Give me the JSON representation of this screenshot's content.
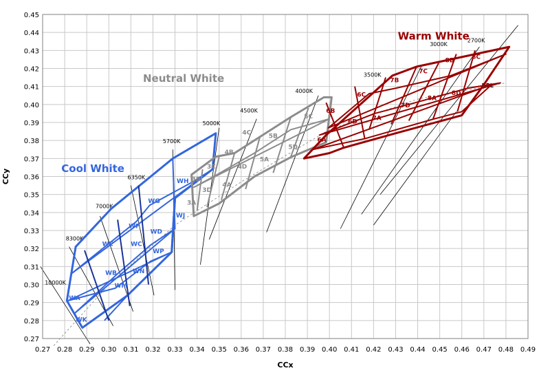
{
  "chart_data": {
    "type": "scatter",
    "xlabel": "CCx",
    "ylabel": "CCy",
    "xlim": [
      0.27,
      0.49
    ],
    "ylim": [
      0.27,
      0.45
    ],
    "x_ticks": [
      0.27,
      0.28,
      0.29,
      0.3,
      0.31,
      0.32,
      0.33,
      0.34,
      0.35,
      0.36,
      0.37,
      0.38,
      0.39,
      0.4,
      0.41,
      0.42,
      0.43,
      0.44,
      0.45,
      0.46,
      0.47,
      0.48,
      0.49
    ],
    "y_ticks": [
      0.27,
      0.28,
      0.29,
      0.3,
      0.31,
      0.32,
      0.33,
      0.34,
      0.35,
      0.36,
      0.37,
      0.38,
      0.39,
      0.4,
      0.41,
      0.42,
      0.43,
      0.44,
      0.45
    ],
    "tick_decimals": 2,
    "grid": true,
    "colors": {
      "cool": "#3366dd",
      "cool_dark": "#1a3399",
      "neutral": "#8c8c8c",
      "warm": "#990000",
      "line": "#000000",
      "grid": "#c8c8c8"
    },
    "bbl": {
      "label": "BBL",
      "points": [
        [
          0.275,
          0.266
        ],
        [
          0.3,
          0.3
        ],
        [
          0.33,
          0.333
        ],
        [
          0.36,
          0.357
        ],
        [
          0.4,
          0.386
        ],
        [
          0.44,
          0.403
        ],
        [
          0.48,
          0.412
        ]
      ],
      "label_pos": [
        0.469,
        0.411
      ]
    },
    "group_labels": [
      {
        "text": "Cool White",
        "x": 0.2785,
        "y": 0.3625,
        "color": "#3366dd"
      },
      {
        "text": "Neutral White",
        "x": 0.3155,
        "y": 0.4125,
        "color": "#8c8c8c"
      },
      {
        "text": "Warm White",
        "x": 0.431,
        "y": 0.436,
        "color": "#990000"
      }
    ],
    "cct_lines": [
      {
        "label": "10000K",
        "p1": [
          0.269,
          0.31
        ],
        "p2": [
          0.2915,
          0.267
        ],
        "label_pos": [
          0.271,
          0.3
        ],
        "anchor": "start"
      },
      {
        "label": "8300K",
        "p1": [
          0.282,
          0.321
        ],
        "p2": [
          0.302,
          0.277
        ],
        "label_pos": [
          0.2805,
          0.3245
        ],
        "anchor": "start"
      },
      {
        "label": "7000K",
        "p1": [
          0.296,
          0.338
        ],
        "p2": [
          0.311,
          0.285
        ],
        "label_pos": [
          0.294,
          0.3425
        ],
        "anchor": "start"
      },
      {
        "label": "6350K",
        "p1": [
          0.31,
          0.355
        ],
        "p2": [
          0.3205,
          0.294
        ],
        "label_pos": [
          0.3085,
          0.3585
        ],
        "anchor": "start"
      },
      {
        "label": "5700K",
        "p1": [
          0.329,
          0.375
        ],
        "p2": [
          0.33,
          0.297
        ],
        "label_pos": [
          0.3245,
          0.3785
        ],
        "anchor": "start"
      },
      {
        "label": "5000K",
        "p1": [
          0.35,
          0.387
        ],
        "p2": [
          0.3415,
          0.311
        ],
        "label_pos": [
          0.3425,
          0.3885
        ],
        "anchor": "start"
      },
      {
        "label": "4500K",
        "p1": [
          0.367,
          0.392
        ],
        "p2": [
          0.3455,
          0.325
        ],
        "label_pos": [
          0.3595,
          0.3955
        ],
        "anchor": "start"
      },
      {
        "label": "4000K",
        "p1": [
          0.395,
          0.405
        ],
        "p2": [
          0.3715,
          0.329
        ],
        "label_pos": [
          0.3845,
          0.4065
        ],
        "anchor": "start"
      },
      {
        "label": "3500K",
        "p1": [
          0.442,
          0.422
        ],
        "p2": [
          0.405,
          0.331
        ],
        "label_pos": [
          0.4155,
          0.4155
        ],
        "anchor": "start"
      },
      {
        "label": "3000K",
        "p1": [
          0.468,
          0.432
        ],
        "p2": [
          0.4145,
          0.339
        ],
        "label_pos": [
          0.4455,
          0.4325
        ],
        "anchor": "start"
      },
      {
        "label": "2700K",
        "p1": [
          0.4855,
          0.444
        ],
        "p2": [
          0.423,
          0.35
        ],
        "label_pos": [
          0.4625,
          0.4345
        ],
        "anchor": "start"
      },
      {
        "label": "",
        "p1": [
          0.4575,
          0.396
        ],
        "p2": [
          0.42,
          0.333
        ],
        "label_pos": [
          0,
          0
        ],
        "anchor": "start"
      }
    ],
    "polygons": [
      {
        "color": "#3366dd",
        "width": 3,
        "points": [
          [
            0.281,
            0.291
          ],
          [
            0.285,
            0.321
          ],
          [
            0.301,
            0.342
          ],
          [
            0.329,
            0.37
          ],
          [
            0.3485,
            0.384
          ],
          [
            0.347,
            0.364
          ],
          [
            0.33,
            0.348
          ],
          [
            0.3285,
            0.318
          ],
          [
            0.3085,
            0.294
          ],
          [
            0.288,
            0.276
          ]
        ]
      },
      {
        "color": "#3366dd",
        "width": 3,
        "points": [
          [
            0.33,
            0.348
          ],
          [
            0.3285,
            0.318
          ]
        ]
      },
      {
        "color": "#3366dd",
        "width": 2,
        "points": [
          [
            0.283,
            0.306
          ],
          [
            0.3125,
            0.335
          ],
          [
            0.3185,
            0.344
          ],
          [
            0.338,
            0.357
          ],
          [
            0.347,
            0.364
          ]
        ]
      },
      {
        "color": "#3366dd",
        "width": 2,
        "points": [
          [
            0.2845,
            0.284
          ],
          [
            0.304,
            0.306
          ],
          [
            0.319,
            0.322
          ],
          [
            0.33,
            0.331
          ]
        ]
      },
      {
        "color": "#3366dd",
        "width": 2,
        "points": [
          [
            0.2815,
            0.291
          ],
          [
            0.303,
            0.298
          ],
          [
            0.319,
            0.313
          ],
          [
            0.3285,
            0.318
          ]
        ]
      },
      {
        "color": "#3366dd",
        "width": 2,
        "points": [
          [
            0.298,
            0.28
          ],
          [
            0.3085,
            0.294
          ]
        ]
      },
      {
        "color": "#1a3399",
        "width": 2,
        "points": [
          [
            0.289,
            0.319
          ],
          [
            0.3,
            0.28
          ]
        ]
      },
      {
        "color": "#1a3399",
        "width": 2,
        "points": [
          [
            0.304,
            0.336
          ],
          [
            0.3095,
            0.288
          ]
        ]
      },
      {
        "color": "#1a3399",
        "width": 2,
        "points": [
          [
            0.3135,
            0.355
          ],
          [
            0.318,
            0.3
          ]
        ]
      },
      {
        "color": "#3366dd",
        "width": 2,
        "points": [
          [
            0.329,
            0.37
          ],
          [
            0.33,
            0.331
          ]
        ]
      },
      {
        "color": "#8c8c8c",
        "width": 3,
        "points": [
          [
            0.3375,
            0.361
          ],
          [
            0.3485,
            0.371
          ],
          [
            0.357,
            0.373
          ],
          [
            0.3825,
            0.393
          ],
          [
            0.3975,
            0.404
          ],
          [
            0.401,
            0.404
          ],
          [
            0.3985,
            0.379
          ],
          [
            0.383,
            0.371
          ],
          [
            0.366,
            0.36
          ],
          [
            0.35,
            0.345
          ],
          [
            0.3385,
            0.338
          ]
        ]
      },
      {
        "color": "#8c8c8c",
        "width": 2,
        "points": [
          [
            0.3375,
            0.361
          ],
          [
            0.3385,
            0.338
          ]
        ]
      },
      {
        "color": "#8c8c8c",
        "width": 2,
        "points": [
          [
            0.3425,
            0.364
          ],
          [
            0.34,
            0.341
          ]
        ]
      },
      {
        "color": "#8c8c8c",
        "width": 2,
        "points": [
          [
            0.35,
            0.371
          ],
          [
            0.3445,
            0.343
          ]
        ]
      },
      {
        "color": "#8c8c8c",
        "width": 2,
        "points": [
          [
            0.357,
            0.373
          ],
          [
            0.351,
            0.347
          ]
        ]
      },
      {
        "color": "#8c8c8c",
        "width": 2,
        "points": [
          [
            0.3685,
            0.382
          ],
          [
            0.362,
            0.353
          ]
        ]
      },
      {
        "color": "#8c8c8c",
        "width": 2,
        "points": [
          [
            0.3825,
            0.393
          ],
          [
            0.3745,
            0.362
          ]
        ]
      },
      {
        "color": "#8c8c8c",
        "width": 2,
        "points": [
          [
            0.3905,
            0.398
          ],
          [
            0.3825,
            0.371
          ]
        ]
      },
      {
        "color": "#8c8c8c",
        "width": 2,
        "points": [
          [
            0.3385,
            0.354
          ],
          [
            0.349,
            0.361
          ],
          [
            0.366,
            0.373
          ],
          [
            0.3825,
            0.386
          ],
          [
            0.4,
            0.392
          ]
        ]
      },
      {
        "color": "#990000",
        "width": 3,
        "points": [
          [
            0.3885,
            0.37
          ],
          [
            0.3985,
            0.383
          ],
          [
            0.4285,
            0.416
          ],
          [
            0.4395,
            0.421
          ],
          [
            0.4815,
            0.432
          ],
          [
            0.47,
            0.411
          ],
          [
            0.46,
            0.394
          ],
          [
            0.43,
            0.384
          ],
          [
            0.4065,
            0.376
          ],
          [
            0.4,
            0.373
          ]
        ]
      },
      {
        "color": "#990000",
        "width": 2,
        "points": [
          [
            0.3925,
            0.375
          ],
          [
            0.416,
            0.381
          ],
          [
            0.4475,
            0.392
          ],
          [
            0.46,
            0.396
          ],
          [
            0.4735,
            0.411
          ]
        ]
      },
      {
        "color": "#990000",
        "width": 2,
        "points": [
          [
            0.3955,
            0.383
          ],
          [
            0.4205,
            0.395
          ],
          [
            0.436,
            0.4
          ],
          [
            0.4625,
            0.409
          ],
          [
            0.4775,
            0.412
          ]
        ]
      },
      {
        "color": "#990000",
        "width": 2,
        "points": [
          [
            0.3995,
            0.387
          ],
          [
            0.418,
            0.406
          ],
          [
            0.43,
            0.409
          ],
          [
            0.455,
            0.416
          ],
          [
            0.48,
            0.428
          ]
        ]
      },
      {
        "color": "#990000",
        "width": 2,
        "points": [
          [
            0.3985,
            0.401
          ],
          [
            0.4065,
            0.376
          ]
        ]
      },
      {
        "color": "#990000",
        "width": 2,
        "points": [
          [
            0.4115,
            0.41
          ],
          [
            0.416,
            0.381
          ]
        ]
      },
      {
        "color": "#990000",
        "width": 2,
        "points": [
          [
            0.4255,
            0.415
          ],
          [
            0.418,
            0.386
          ]
        ]
      },
      {
        "color": "#990000",
        "width": 2,
        "points": [
          [
            0.4395,
            0.421
          ],
          [
            0.428,
            0.389
          ]
        ]
      },
      {
        "color": "#990000",
        "width": 2,
        "points": [
          [
            0.4495,
            0.423
          ],
          [
            0.436,
            0.391
          ]
        ]
      },
      {
        "color": "#990000",
        "width": 2,
        "points": [
          [
            0.4575,
            0.428
          ],
          [
            0.447,
            0.392
          ]
        ]
      },
      {
        "color": "#990000",
        "width": 2,
        "points": [
          [
            0.466,
            0.43
          ],
          [
            0.458,
            0.396
          ]
        ]
      }
    ],
    "bin_labels": [
      {
        "text": "WA",
        "x": 0.2845,
        "y": 0.2925,
        "color": "#3366dd"
      },
      {
        "text": "WK",
        "x": 0.2875,
        "y": 0.2805,
        "color": "#3366dd"
      },
      {
        "text": "WE",
        "x": 0.2995,
        "y": 0.3225,
        "color": "#3366dd"
      },
      {
        "text": "WB",
        "x": 0.301,
        "y": 0.3065,
        "color": "#3366dd"
      },
      {
        "text": "WM",
        "x": 0.3055,
        "y": 0.2995,
        "color": "#3366dd"
      },
      {
        "text": "WF",
        "x": 0.3115,
        "y": 0.3325,
        "color": "#3366dd"
      },
      {
        "text": "WC",
        "x": 0.3125,
        "y": 0.3225,
        "color": "#3366dd"
      },
      {
        "text": "WN",
        "x": 0.3135,
        "y": 0.3075,
        "color": "#3366dd"
      },
      {
        "text": "WG",
        "x": 0.3205,
        "y": 0.3465,
        "color": "#3366dd"
      },
      {
        "text": "WD",
        "x": 0.3215,
        "y": 0.3295,
        "color": "#3366dd"
      },
      {
        "text": "WP",
        "x": 0.3225,
        "y": 0.3185,
        "color": "#3366dd"
      },
      {
        "text": "WH",
        "x": 0.3335,
        "y": 0.3575,
        "color": "#3366dd"
      },
      {
        "text": "WJ",
        "x": 0.3325,
        "y": 0.3385,
        "color": "#3366dd"
      },
      {
        "text": "3B",
        "x": 0.3395,
        "y": 0.3585,
        "color": "#8c8c8c"
      },
      {
        "text": "3A",
        "x": 0.3375,
        "y": 0.3455,
        "color": "#8c8c8c"
      },
      {
        "text": "3C",
        "x": 0.3465,
        "y": 0.3655,
        "color": "#8c8c8c"
      },
      {
        "text": "3D",
        "x": 0.3445,
        "y": 0.3525,
        "color": "#8c8c8c"
      },
      {
        "text": "4B",
        "x": 0.3545,
        "y": 0.3735,
        "color": "#8c8c8c"
      },
      {
        "text": "4A",
        "x": 0.3535,
        "y": 0.3555,
        "color": "#8c8c8c"
      },
      {
        "text": "4C",
        "x": 0.3625,
        "y": 0.3845,
        "color": "#8c8c8c"
      },
      {
        "text": "4D",
        "x": 0.3605,
        "y": 0.3655,
        "color": "#8c8c8c"
      },
      {
        "text": "5B",
        "x": 0.3745,
        "y": 0.3825,
        "color": "#8c8c8c"
      },
      {
        "text": "5A",
        "x": 0.3705,
        "y": 0.3695,
        "color": "#8c8c8c"
      },
      {
        "text": "5C",
        "x": 0.3905,
        "y": 0.3935,
        "color": "#8c8c8c"
      },
      {
        "text": "5D",
        "x": 0.3835,
        "y": 0.3765,
        "color": "#8c8c8c"
      },
      {
        "text": "6A",
        "x": 0.3965,
        "y": 0.3805,
        "color": "#990000"
      },
      {
        "text": "6B",
        "x": 0.4005,
        "y": 0.3965,
        "color": "#990000"
      },
      {
        "text": "6D",
        "x": 0.4105,
        "y": 0.3905,
        "color": "#990000"
      },
      {
        "text": "6C",
        "x": 0.4145,
        "y": 0.4055,
        "color": "#990000"
      },
      {
        "text": "7A",
        "x": 0.4215,
        "y": 0.3925,
        "color": "#990000"
      },
      {
        "text": "7B",
        "x": 0.4295,
        "y": 0.4135,
        "color": "#990000"
      },
      {
        "text": "7D",
        "x": 0.4345,
        "y": 0.3995,
        "color": "#990000"
      },
      {
        "text": "7C",
        "x": 0.4425,
        "y": 0.4185,
        "color": "#990000"
      },
      {
        "text": "8A",
        "x": 0.4465,
        "y": 0.4035,
        "color": "#990000"
      },
      {
        "text": "8B",
        "x": 0.4545,
        "y": 0.4245,
        "color": "#990000"
      },
      {
        "text": "8D",
        "x": 0.4575,
        "y": 0.4065,
        "color": "#990000"
      },
      {
        "text": "8C",
        "x": 0.4665,
        "y": 0.4265,
        "color": "#990000"
      }
    ]
  }
}
